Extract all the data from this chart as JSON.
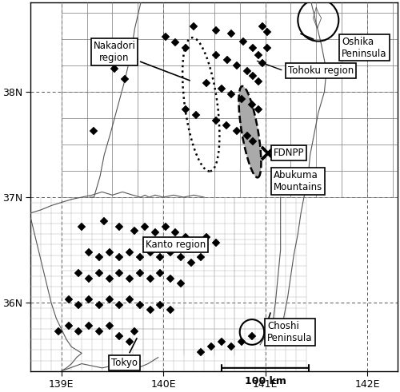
{
  "xlim": [
    138.7,
    142.3
  ],
  "ylim": [
    35.35,
    38.85
  ],
  "xticks": [
    139,
    140,
    141,
    142
  ],
  "yticks": [
    36,
    37,
    38
  ],
  "xlabel_labels": [
    "139E",
    "140E",
    "141E",
    "142E"
  ],
  "ylabel_labels": [
    "36N",
    "37N",
    "38N"
  ],
  "fdnpp": [
    141.025,
    37.42
  ],
  "sample_stations": [
    [
      140.3,
      38.62
    ],
    [
      140.52,
      38.58
    ],
    [
      140.67,
      38.55
    ],
    [
      140.78,
      38.48
    ],
    [
      140.88,
      38.42
    ],
    [
      140.93,
      38.35
    ],
    [
      140.97,
      38.27
    ],
    [
      140.52,
      38.35
    ],
    [
      140.63,
      38.3
    ],
    [
      140.72,
      38.25
    ],
    [
      140.82,
      38.2
    ],
    [
      140.88,
      38.15
    ],
    [
      140.93,
      38.1
    ],
    [
      140.42,
      38.08
    ],
    [
      140.57,
      38.03
    ],
    [
      140.67,
      37.98
    ],
    [
      140.77,
      37.93
    ],
    [
      140.87,
      37.88
    ],
    [
      140.93,
      37.83
    ],
    [
      140.52,
      37.73
    ],
    [
      140.62,
      37.68
    ],
    [
      140.72,
      37.63
    ],
    [
      140.82,
      37.58
    ],
    [
      140.88,
      37.53
    ],
    [
      140.22,
      37.83
    ],
    [
      140.32,
      37.78
    ],
    [
      139.52,
      38.22
    ],
    [
      139.62,
      38.12
    ],
    [
      139.32,
      37.63
    ],
    [
      140.02,
      38.52
    ],
    [
      140.12,
      38.47
    ],
    [
      140.22,
      38.42
    ],
    [
      140.97,
      38.62
    ],
    [
      141.02,
      38.57
    ],
    [
      141.02,
      38.42
    ],
    [
      139.2,
      36.72
    ],
    [
      139.42,
      36.77
    ],
    [
      139.57,
      36.72
    ],
    [
      139.72,
      36.68
    ],
    [
      139.82,
      36.72
    ],
    [
      139.92,
      36.67
    ],
    [
      140.02,
      36.72
    ],
    [
      140.12,
      36.67
    ],
    [
      140.22,
      36.62
    ],
    [
      140.32,
      36.57
    ],
    [
      140.42,
      36.62
    ],
    [
      140.52,
      36.57
    ],
    [
      139.27,
      36.48
    ],
    [
      139.37,
      36.43
    ],
    [
      139.47,
      36.48
    ],
    [
      139.57,
      36.43
    ],
    [
      139.67,
      36.48
    ],
    [
      139.77,
      36.43
    ],
    [
      139.87,
      36.48
    ],
    [
      139.97,
      36.43
    ],
    [
      140.07,
      36.48
    ],
    [
      140.17,
      36.43
    ],
    [
      140.27,
      36.38
    ],
    [
      140.37,
      36.43
    ],
    [
      139.17,
      36.28
    ],
    [
      139.27,
      36.23
    ],
    [
      139.37,
      36.28
    ],
    [
      139.47,
      36.23
    ],
    [
      139.57,
      36.28
    ],
    [
      139.67,
      36.23
    ],
    [
      139.77,
      36.28
    ],
    [
      139.87,
      36.23
    ],
    [
      139.97,
      36.28
    ],
    [
      140.07,
      36.23
    ],
    [
      140.17,
      36.18
    ],
    [
      139.07,
      36.03
    ],
    [
      139.17,
      35.98
    ],
    [
      139.27,
      36.03
    ],
    [
      139.37,
      35.98
    ],
    [
      139.47,
      36.03
    ],
    [
      139.57,
      35.98
    ],
    [
      139.67,
      36.03
    ],
    [
      139.77,
      35.98
    ],
    [
      139.87,
      35.93
    ],
    [
      139.97,
      35.98
    ],
    [
      140.07,
      35.93
    ],
    [
      138.97,
      35.73
    ],
    [
      139.07,
      35.78
    ],
    [
      139.17,
      35.73
    ],
    [
      139.27,
      35.78
    ],
    [
      139.37,
      35.73
    ],
    [
      139.47,
      35.78
    ],
    [
      139.57,
      35.68
    ],
    [
      139.67,
      35.63
    ],
    [
      139.72,
      35.73
    ],
    [
      140.37,
      35.53
    ],
    [
      140.47,
      35.58
    ],
    [
      140.57,
      35.63
    ],
    [
      140.67,
      35.58
    ],
    [
      140.77,
      35.63
    ],
    [
      140.87,
      35.68
    ]
  ],
  "background_color": "#ffffff"
}
